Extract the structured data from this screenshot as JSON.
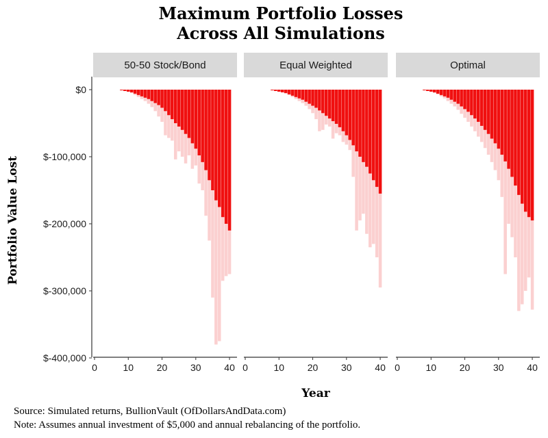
{
  "title_lines": [
    "Maximum Portfolio Losses",
    "Across All Simulations"
  ],
  "caption": {
    "source": "Source:  Simulated returns, BullionVault (OfDollarsAndData.com)",
    "note": "Note:  Assumes annual investment of $5,000 and annual rebalancing of the portfolio."
  },
  "colors": {
    "bar_dark": "#f01010",
    "bar_light": "#fbd0d0",
    "strip_bg": "#d9d9d9",
    "axis": "#333333"
  },
  "chart_data": {
    "type": "bar",
    "facets": [
      "50-50 Stock/Bond",
      "Equal Weighted",
      "Optimal"
    ],
    "xlabel": "Year",
    "ylabel": "Portfolio Value Lost",
    "xlim": [
      0,
      41
    ],
    "ylim": [
      -400000,
      0
    ],
    "x_ticks": [
      0,
      10,
      20,
      30,
      40
    ],
    "x_tick_labels": [
      "0",
      "10",
      "20",
      "30",
      "40"
    ],
    "y_ticks": [
      0,
      -100000,
      -200000,
      -300000,
      -400000
    ],
    "y_tick_labels": [
      "$0",
      "$-100,000",
      "$-200,000",
      "$-300,000",
      "$-400,000"
    ],
    "years": [
      7,
      8,
      9,
      10,
      11,
      12,
      13,
      14,
      15,
      16,
      17,
      18,
      19,
      20,
      21,
      22,
      23,
      24,
      25,
      26,
      27,
      28,
      29,
      30,
      31,
      32,
      33,
      34,
      35,
      36,
      37,
      38,
      39,
      40
    ],
    "series": [
      {
        "name": "50-50 Stock/Bond",
        "dense_loss": [
          0,
          -1000,
          -2000,
          -3000,
          -4000,
          -6000,
          -8000,
          -10000,
          -12000,
          -14000,
          -17000,
          -20000,
          -23000,
          -27000,
          -32000,
          -38000,
          -44000,
          -50000,
          -55000,
          -60000,
          -66000,
          -72000,
          -80000,
          -88000,
          -98000,
          -108000,
          -120000,
          -135000,
          -150000,
          -165000,
          -175000,
          -190000,
          -200000,
          -210000
        ],
        "max_loss": [
          0,
          -1000,
          -2000,
          -3000,
          -5000,
          -8000,
          -11000,
          -14000,
          -17000,
          -21000,
          -26000,
          -32000,
          -40000,
          -48000,
          -68000,
          -72000,
          -76000,
          -104000,
          -92000,
          -100000,
          -110000,
          -98000,
          -118000,
          -113000,
          -140000,
          -150000,
          -188000,
          -225000,
          -310000,
          -380000,
          -375000,
          -285000,
          -278000,
          -275000
        ]
      },
      {
        "name": "Equal Weighted",
        "dense_loss": [
          0,
          -1000,
          -2000,
          -3000,
          -4000,
          -5000,
          -7000,
          -9000,
          -11000,
          -13000,
          -15000,
          -18000,
          -21000,
          -24000,
          -27000,
          -31000,
          -35000,
          -39000,
          -43000,
          -47000,
          -51000,
          -56000,
          -62000,
          -68000,
          -75000,
          -83000,
          -92000,
          -100000,
          -108000,
          -115000,
          -125000,
          -135000,
          -145000,
          -155000
        ],
        "max_loss": [
          0,
          -1000,
          -2000,
          -3000,
          -4000,
          -6000,
          -8000,
          -11000,
          -14000,
          -17000,
          -20000,
          -24000,
          -29000,
          -35000,
          -44000,
          -62000,
          -60000,
          -52000,
          -55000,
          -73000,
          -65000,
          -68000,
          -78000,
          -82000,
          -90000,
          -130000,
          -210000,
          -195000,
          -185000,
          -215000,
          -235000,
          -230000,
          -250000,
          -295000
        ]
      },
      {
        "name": "Optimal",
        "dense_loss": [
          0,
          -1000,
          -2000,
          -3000,
          -4000,
          -6000,
          -8000,
          -10000,
          -12000,
          -15000,
          -18000,
          -21000,
          -25000,
          -29000,
          -33000,
          -38000,
          -43000,
          -48000,
          -54000,
          -60000,
          -66000,
          -73000,
          -80000,
          -88000,
          -97000,
          -107000,
          -118000,
          -130000,
          -143000,
          -157000,
          -170000,
          -182000,
          -190000,
          -195000
        ],
        "max_loss": [
          0,
          -1000,
          -2000,
          -3000,
          -5000,
          -7000,
          -10000,
          -13000,
          -17000,
          -21000,
          -25000,
          -30000,
          -36000,
          -42000,
          -48000,
          -55000,
          -62000,
          -70000,
          -78000,
          -87000,
          -97000,
          -108000,
          -120000,
          -135000,
          -160000,
          -275000,
          -200000,
          -220000,
          -250000,
          -330000,
          -320000,
          -300000,
          -280000,
          -328000
        ]
      }
    ]
  }
}
